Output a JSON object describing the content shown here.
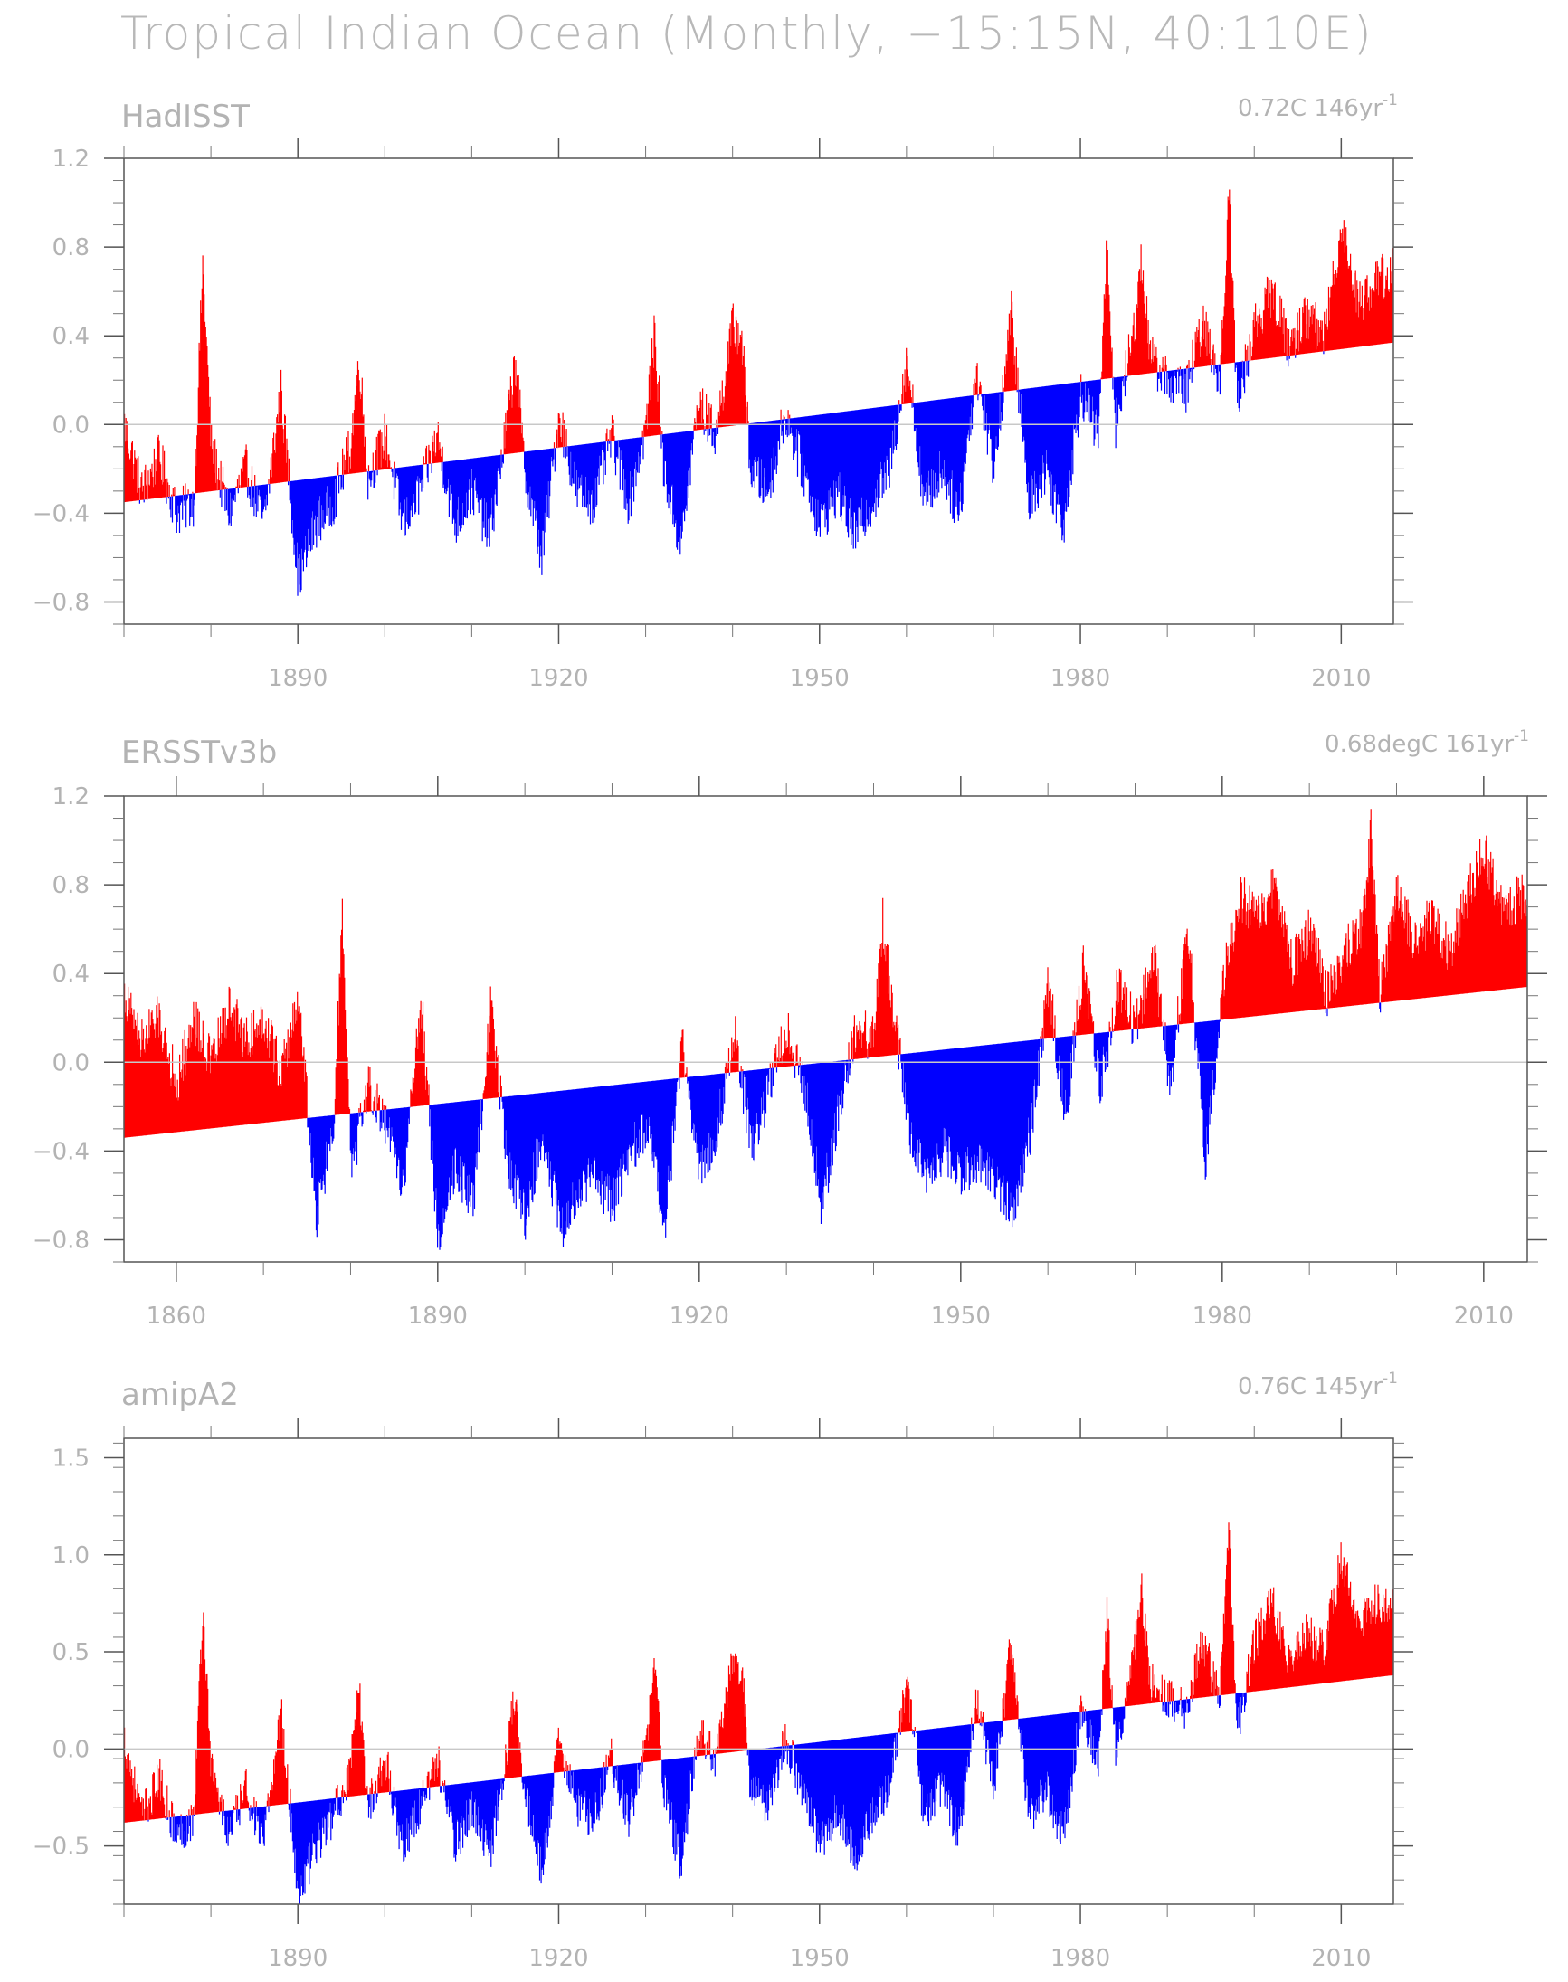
{
  "title": "Tropical Indian Ocean (Monthly, −15:15N, 40:110E)",
  "colors": {
    "positive": "#ff0000",
    "negative": "#0000ff",
    "axis": "#999999",
    "text": "#b3b3b3"
  },
  "chart_data": [
    {
      "type": "area",
      "title": "HadISST",
      "subtitle": "0.72C 146yr",
      "subtitle_sup": "-1",
      "xlim": [
        1870,
        2016
      ],
      "ylim": [
        -0.9,
        1.2
      ],
      "yticks": [
        -0.8,
        -0.4,
        0.0,
        0.4,
        0.8,
        1.2
      ],
      "ytick_labels": [
        "−0.8",
        "−0.4",
        "0.0",
        "0.4",
        "0.8",
        "1.2"
      ],
      "xticks": [
        1890,
        1920,
        1950,
        1980,
        2010
      ],
      "xtick_labels": [
        "1890",
        "1920",
        "1950",
        "1980",
        "2010"
      ],
      "zero_line": true,
      "trend": {
        "x": [
          1870,
          2016
        ],
        "y": [
          -0.35,
          0.37
        ]
      },
      "series": [
        {
          "x": [
            1870,
            1872,
            1874,
            1876,
            1878,
            1879,
            1880,
            1882,
            1884,
            1886,
            1888,
            1890,
            1892,
            1894,
            1896,
            1897,
            1898,
            1900,
            1902,
            1904,
            1906,
            1908,
            1910,
            1912,
            1914,
            1915,
            1916,
            1918,
            1920,
            1922,
            1924,
            1926,
            1928,
            1930,
            1931,
            1932,
            1934,
            1936,
            1938,
            1940,
            1941,
            1942,
            1944,
            1946,
            1948,
            1950,
            1952,
            1954,
            1956,
            1958,
            1960,
            1962,
            1964,
            1966,
            1968,
            1970,
            1972,
            1974,
            1976,
            1978,
            1980,
            1982,
            1983,
            1984,
            1986,
            1987,
            1988,
            1990,
            1992,
            1994,
            1996,
            1997,
            1998,
            2000,
            2002,
            2004,
            2006,
            2008,
            2010,
            2012,
            2014,
            2016
          ],
          "y": [
            0.0,
            -0.3,
            -0.15,
            -0.4,
            -0.35,
            0.72,
            -0.1,
            -0.4,
            -0.2,
            -0.45,
            0.15,
            -0.7,
            -0.45,
            -0.35,
            -0.1,
            0.3,
            -0.25,
            -0.05,
            -0.45,
            -0.3,
            -0.05,
            -0.45,
            -0.3,
            -0.5,
            0.0,
            0.3,
            -0.2,
            -0.6,
            0.05,
            -0.3,
            -0.35,
            -0.05,
            -0.35,
            0.0,
            0.42,
            -0.2,
            -0.55,
            0.1,
            -0.05,
            0.45,
            0.4,
            -0.2,
            -0.3,
            0.05,
            -0.2,
            -0.45,
            -0.3,
            -0.5,
            -0.35,
            -0.2,
            0.3,
            -0.35,
            -0.2,
            -0.4,
            0.25,
            -0.2,
            0.5,
            -0.35,
            -0.2,
            -0.45,
            0.15,
            -0.05,
            0.8,
            0.0,
            0.4,
            0.75,
            0.3,
            0.2,
            0.15,
            0.45,
            0.2,
            1.05,
            0.1,
            0.45,
            0.6,
            0.35,
            0.5,
            0.4,
            0.9,
            0.55,
            0.65,
            0.7
          ]
        }
      ]
    },
    {
      "type": "area",
      "title": "ERSSTv3b",
      "subtitle": "0.68degC 161yr",
      "subtitle_sup": "-1",
      "xlim": [
        1854,
        2015
      ],
      "ylim": [
        -0.9,
        1.2
      ],
      "yticks": [
        -0.8,
        -0.4,
        0.0,
        0.4,
        0.8,
        1.2
      ],
      "ytick_labels": [
        "−0.8",
        "−0.4",
        "0.0",
        "0.4",
        "0.8",
        "1.2"
      ],
      "xticks": [
        1860,
        1890,
        1920,
        1950,
        1980,
        2010
      ],
      "xtick_labels": [
        "1860",
        "1890",
        "1920",
        "1950",
        "1980",
        "2010"
      ],
      "zero_line": true,
      "trend": {
        "x": [
          1854,
          2015
        ],
        "y": [
          -0.34,
          0.34
        ]
      },
      "series": [
        {
          "x": [
            1854,
            1856,
            1858,
            1860,
            1862,
            1864,
            1866,
            1868,
            1870,
            1872,
            1874,
            1876,
            1878,
            1879,
            1880,
            1882,
            1884,
            1886,
            1888,
            1890,
            1892,
            1894,
            1896,
            1898,
            1900,
            1902,
            1904,
            1906,
            1908,
            1910,
            1912,
            1914,
            1916,
            1918,
            1920,
            1922,
            1924,
            1926,
            1928,
            1930,
            1932,
            1934,
            1936,
            1938,
            1940,
            1941,
            1942,
            1944,
            1946,
            1948,
            1950,
            1952,
            1954,
            1956,
            1958,
            1960,
            1962,
            1964,
            1966,
            1968,
            1970,
            1972,
            1974,
            1976,
            1978,
            1980,
            1982,
            1984,
            1986,
            1988,
            1990,
            1992,
            1994,
            1996,
            1997,
            1998,
            2000,
            2002,
            2004,
            2006,
            2008,
            2010,
            2012,
            2015
          ],
          "y": [
            0.3,
            0.1,
            0.2,
            -0.1,
            0.2,
            0.0,
            0.25,
            0.1,
            0.2,
            -0.05,
            0.3,
            -0.7,
            -0.3,
            0.65,
            -0.5,
            -0.1,
            -0.3,
            -0.55,
            0.3,
            -0.8,
            -0.45,
            -0.65,
            0.25,
            -0.45,
            -0.7,
            -0.3,
            -0.75,
            -0.6,
            -0.5,
            -0.65,
            -0.4,
            -0.3,
            -0.75,
            0.1,
            -0.5,
            -0.3,
            0.15,
            -0.4,
            -0.1,
            0.15,
            -0.1,
            -0.65,
            -0.2,
            0.15,
            0.1,
            0.65,
            0.3,
            -0.3,
            -0.5,
            -0.4,
            -0.5,
            -0.45,
            -0.55,
            -0.65,
            -0.3,
            0.35,
            -0.25,
            0.45,
            -0.1,
            0.35,
            0.15,
            0.5,
            -0.1,
            0.6,
            -0.45,
            0.35,
            0.75,
            0.65,
            0.8,
            0.45,
            0.6,
            0.3,
            0.5,
            0.6,
            1.05,
            0.3,
            0.75,
            0.55,
            0.65,
            0.5,
            0.75,
            0.95,
            0.7,
            0.75
          ]
        }
      ]
    },
    {
      "type": "area",
      "title": "amipA2",
      "subtitle": "0.76C 145yr",
      "subtitle_sup": "-1",
      "xlim": [
        1870,
        2016
      ],
      "ylim": [
        -0.8,
        1.6
      ],
      "yticks": [
        -0.5,
        0.0,
        0.5,
        1.0,
        1.5
      ],
      "ytick_labels": [
        "−0.5",
        "0.0",
        "0.5",
        "1.0",
        "1.5"
      ],
      "xticks": [
        1890,
        1920,
        1950,
        1980,
        2010
      ],
      "xtick_labels": [
        "1890",
        "1920",
        "1950",
        "1980",
        "2010"
      ],
      "zero_line": true,
      "trend": {
        "x": [
          1870,
          2016
        ],
        "y": [
          -0.38,
          0.38
        ]
      },
      "series": [
        {
          "x": [
            1870,
            1872,
            1874,
            1876,
            1878,
            1879,
            1880,
            1882,
            1884,
            1886,
            1888,
            1890,
            1892,
            1894,
            1896,
            1897,
            1898,
            1900,
            1902,
            1904,
            1906,
            1908,
            1910,
            1912,
            1914,
            1915,
            1916,
            1918,
            1920,
            1922,
            1924,
            1926,
            1928,
            1930,
            1931,
            1932,
            1934,
            1936,
            1938,
            1940,
            1941,
            1942,
            1944,
            1946,
            1948,
            1950,
            1952,
            1954,
            1956,
            1958,
            1960,
            1962,
            1964,
            1966,
            1968,
            1970,
            1972,
            1974,
            1976,
            1978,
            1980,
            1982,
            1983,
            1984,
            1986,
            1987,
            1988,
            1990,
            1992,
            1994,
            1996,
            1997,
            1998,
            2000,
            2002,
            2004,
            2006,
            2008,
            2010,
            2012,
            2014,
            2016
          ],
          "y": [
            0.05,
            -0.35,
            -0.15,
            -0.45,
            -0.35,
            0.72,
            -0.1,
            -0.45,
            -0.2,
            -0.5,
            0.2,
            -0.75,
            -0.5,
            -0.35,
            -0.1,
            0.3,
            -0.3,
            -0.05,
            -0.5,
            -0.3,
            -0.05,
            -0.5,
            -0.3,
            -0.55,
            0.0,
            0.32,
            -0.2,
            -0.65,
            0.05,
            -0.3,
            -0.35,
            -0.05,
            -0.35,
            0.0,
            0.45,
            -0.2,
            -0.6,
            0.1,
            -0.05,
            0.45,
            0.42,
            -0.2,
            -0.3,
            0.05,
            -0.2,
            -0.5,
            -0.3,
            -0.55,
            -0.35,
            -0.2,
            0.35,
            -0.35,
            -0.2,
            -0.45,
            0.3,
            -0.2,
            0.55,
            -0.35,
            -0.2,
            -0.45,
            0.2,
            -0.05,
            0.7,
            0.0,
            0.45,
            0.8,
            0.35,
            0.25,
            0.2,
            0.55,
            0.25,
            1.18,
            0.1,
            0.55,
            0.75,
            0.45,
            0.6,
            0.5,
            1.0,
            0.65,
            0.75,
            0.75
          ]
        }
      ]
    }
  ]
}
